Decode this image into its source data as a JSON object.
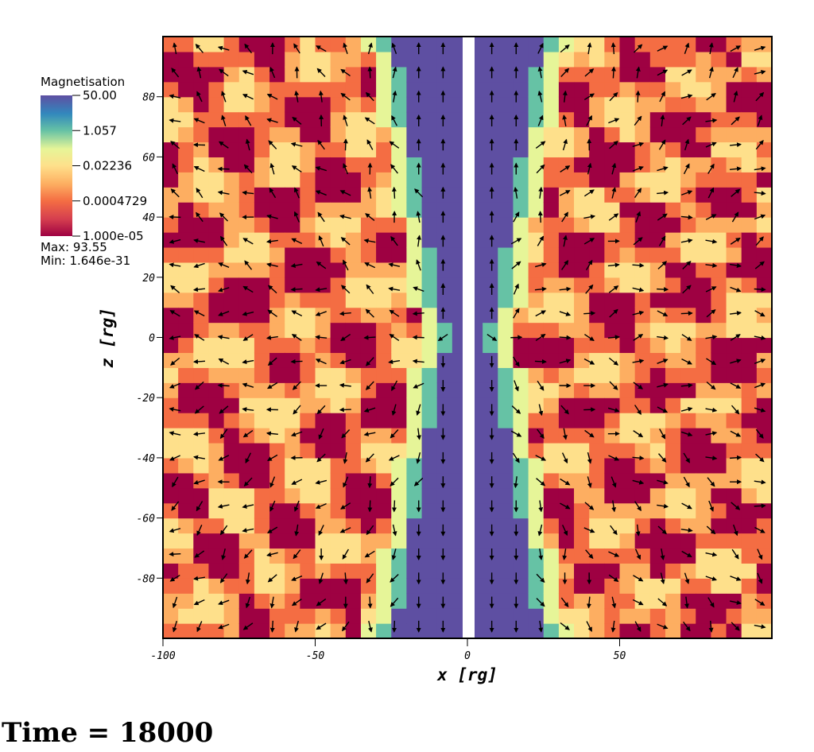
{
  "time_label": "Time = 18000",
  "colorbar": {
    "title": "Magnetisation",
    "labels": [
      "50.00",
      "1.057",
      "0.02236",
      "0.0004729",
      "1.000e-05"
    ],
    "max_text": "Max:  93.55",
    "min_text": "Min:  1.646e-31",
    "colors": [
      "#5e4fa2",
      "#3288bd",
      "#66c2a5",
      "#e6f598",
      "#fee08b",
      "#fdae61",
      "#f46d43",
      "#d53e4f",
      "#9e0142"
    ]
  },
  "chart_data": {
    "type": "heatmap",
    "title": "",
    "xlabel": "x  [rg]",
    "ylabel": "z  [rg]",
    "xlim": [
      -100,
      100
    ],
    "ylim": [
      -100,
      100
    ],
    "xticks": [
      -100,
      -50,
      0,
      50
    ],
    "yticks": [
      -80,
      -60,
      -40,
      -20,
      0,
      20,
      40,
      60,
      80
    ],
    "xtick_labels": [
      "-100",
      "-50",
      "0",
      "50"
    ],
    "ytick_labels": [
      "-80",
      "-60",
      "-40",
      "-20",
      "0",
      "20",
      "40",
      "60",
      "80"
    ],
    "colorscale": "log",
    "color_range": [
      1e-05,
      50
    ],
    "field": "Magnetisation",
    "vectors": true
  }
}
